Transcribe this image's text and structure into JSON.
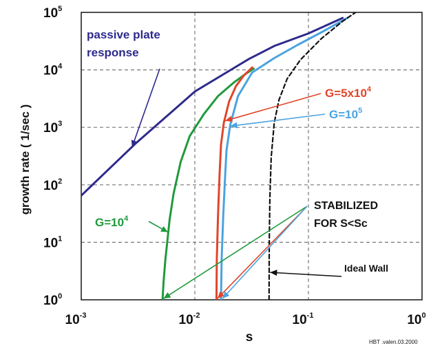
{
  "chart_data": {
    "type": "line",
    "x_scale": "log",
    "y_scale": "log",
    "xlim": [
      0.001,
      1
    ],
    "ylim": [
      1,
      100000
    ],
    "xlabel": "s",
    "ylabel": "growth rate ( 1/sec )",
    "grid": true,
    "x_ticks": [
      {
        "value": 0.001,
        "base": "10",
        "exp": "-3"
      },
      {
        "value": 0.01,
        "base": "10",
        "exp": "-2"
      },
      {
        "value": 0.1,
        "base": "10",
        "exp": "-1"
      },
      {
        "value": 1,
        "base": "10",
        "exp": "0"
      }
    ],
    "y_ticks": [
      {
        "value": 1,
        "base": "10",
        "exp": "0"
      },
      {
        "value": 10,
        "base": "10",
        "exp": "1"
      },
      {
        "value": 100,
        "base": "10",
        "exp": "2"
      },
      {
        "value": 1000,
        "base": "10",
        "exp": "3"
      },
      {
        "value": 10000,
        "base": "10",
        "exp": "4"
      },
      {
        "value": 100000,
        "base": "10",
        "exp": "5"
      }
    ],
    "series": [
      {
        "name": "passive plate response",
        "color": "#2e2a8c",
        "style": "solid",
        "x": [
          0.001,
          0.003,
          0.01,
          0.02,
          0.03,
          0.05,
          0.1,
          0.2
        ],
        "y": [
          65,
          520,
          4200,
          9600,
          15500,
          26000,
          43000,
          80000
        ]
      },
      {
        "name": "G=10^4",
        "color": "#1f9a3c",
        "style": "solid",
        "x": [
          0.0052,
          0.0053,
          0.0055,
          0.006,
          0.0065,
          0.0075,
          0.009,
          0.012,
          0.016,
          0.022,
          0.028,
          0.033
        ],
        "y": [
          1,
          2,
          5,
          25,
          70,
          250,
          700,
          1700,
          3500,
          6000,
          8500,
          10500
        ]
      },
      {
        "name": "G=5x10^4",
        "color": "#e0452a",
        "style": "solid",
        "x": [
          0.0155,
          0.0156,
          0.016,
          0.0165,
          0.017,
          0.018,
          0.02,
          0.023,
          0.027,
          0.032
        ],
        "y": [
          1,
          5,
          30,
          150,
          500,
          1200,
          2800,
          5200,
          8000,
          11000
        ]
      },
      {
        "name": "G=10^5",
        "color": "#4aa3e0",
        "style": "solid",
        "x": [
          0.017,
          0.0172,
          0.0178,
          0.0185,
          0.019,
          0.0205,
          0.024,
          0.032,
          0.05,
          0.08,
          0.13,
          0.22
        ],
        "y": [
          1,
          5,
          30,
          150,
          400,
          1100,
          3500,
          9000,
          16000,
          27000,
          45000,
          80000
        ]
      },
      {
        "name": "Ideal Wall",
        "color": "#111111",
        "style": "dashed",
        "x": [
          0.045,
          0.0452,
          0.0458,
          0.047,
          0.05,
          0.055,
          0.065,
          0.085,
          0.13,
          0.2,
          0.26
        ],
        "y": [
          1,
          10,
          60,
          300,
          1200,
          3000,
          7000,
          15000,
          35000,
          70000,
          100000
        ]
      }
    ],
    "annotations": {
      "passive": {
        "line1": "passive plate",
        "line2": "response",
        "color": "#2e2a8c"
      },
      "g1e4": {
        "base": "G=10",
        "exp": "4",
        "color": "#1f9a3c"
      },
      "g5e4": {
        "base": "G=5x10",
        "exp": "4",
        "color": "#e0452a"
      },
      "g1e5": {
        "base": "G=10",
        "exp": "5",
        "color": "#4aa3e0"
      },
      "stabilized": {
        "line1": "STABILIZED",
        "line2": "FOR S<Sc",
        "color": "#111111"
      },
      "ideal_wall": {
        "text": "Ideal Wall",
        "color": "#111111"
      },
      "credit": "HBT .valen.03.2000"
    }
  }
}
